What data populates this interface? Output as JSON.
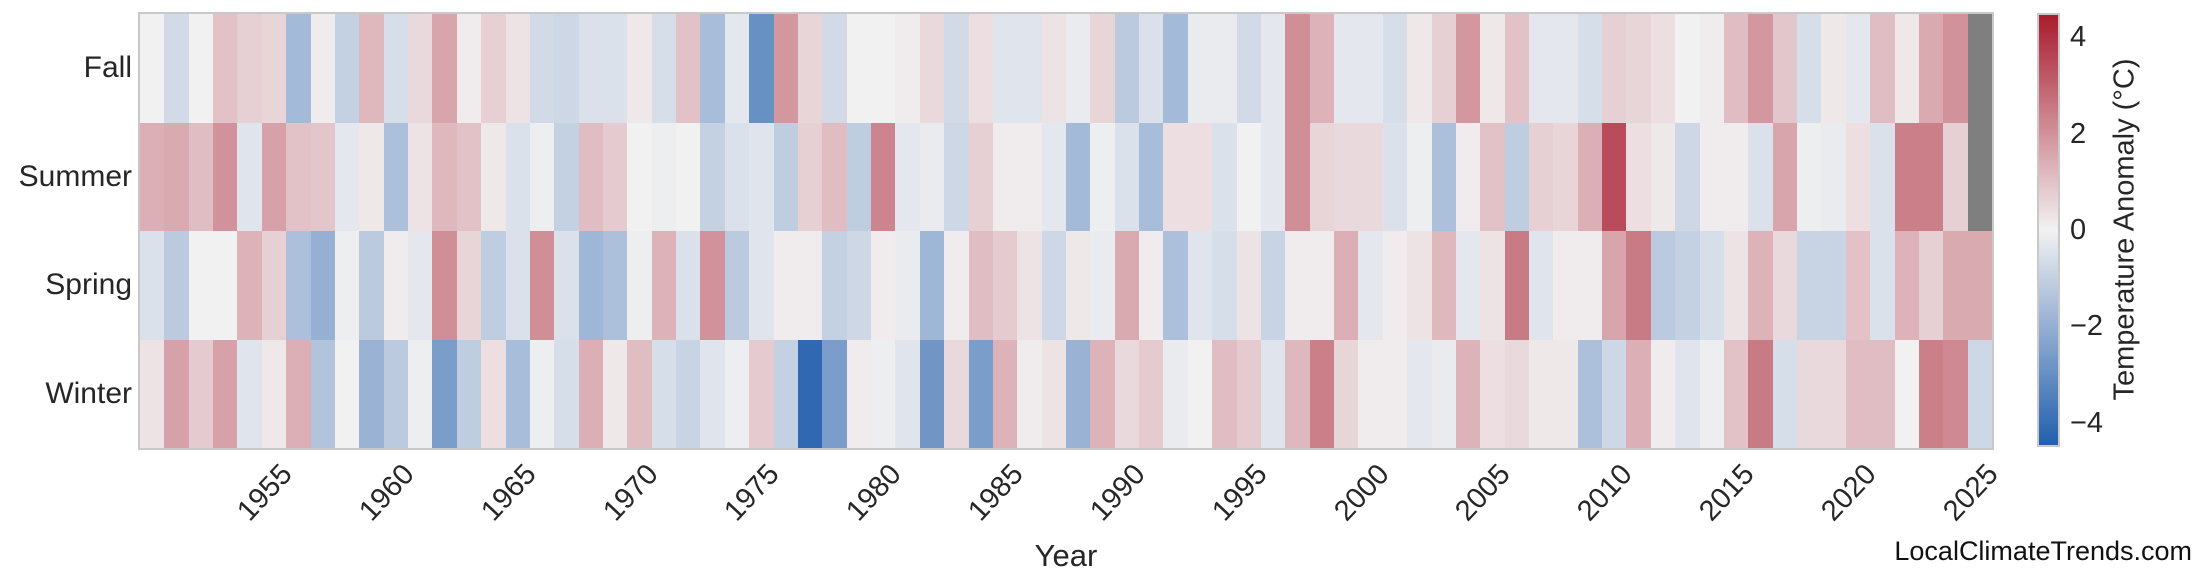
{
  "chart_data": {
    "type": "heatmap",
    "title": "",
    "xlabel": "Year",
    "watermark": "LocalClimateTrends.com",
    "year_start": 1950,
    "year_end": 2025,
    "x_tick_labels": [
      "1955",
      "1960",
      "1965",
      "1970",
      "1975",
      "1980",
      "1985",
      "1990",
      "1995",
      "2000",
      "2005",
      "2010",
      "2015",
      "2020",
      "2025"
    ],
    "colorbar": {
      "label": "Temperature Anomaly (°C)",
      "tick_values": [
        4,
        2,
        0,
        -2,
        -4
      ],
      "tick_labels": [
        "4",
        "2",
        "0",
        "−2",
        "−4"
      ],
      "vmin": -4.5,
      "vmax": 4.5
    },
    "colors": {
      "positive_max": "#a91c2e",
      "center": "#f2f1f2",
      "negative_min": "#225fac",
      "missing": "#7f7f7f",
      "frame": "#c9c9c9"
    },
    "legend_position": "right",
    "grid": false,
    "series": [
      {
        "name": "Fall",
        "values": [
          0.0,
          -0.7,
          0.0,
          1.0,
          0.7,
          0.6,
          -1.7,
          0.1,
          -1.0,
          1.2,
          -0.6,
          0.5,
          1.6,
          0.1,
          0.7,
          0.3,
          -0.7,
          -0.8,
          -0.5,
          -0.5,
          0.2,
          -0.6,
          1.0,
          -1.6,
          -0.3,
          -3.0,
          1.9,
          0.6,
          -0.7,
          0.0,
          0.0,
          0.1,
          0.5,
          -0.7,
          0.4,
          -0.4,
          -0.4,
          0.3,
          -0.2,
          0.6,
          -1.2,
          -0.5,
          -1.7,
          -0.2,
          -0.2,
          -0.7,
          -0.3,
          2.1,
          1.3,
          -0.3,
          -0.3,
          -0.6,
          0.2,
          0.7,
          1.9,
          0.2,
          1.0,
          -0.3,
          -0.3,
          -0.6,
          0.7,
          0.6,
          0.4,
          0.0,
          0.1,
          1.1,
          1.9,
          0.9,
          -0.6,
          0.2,
          -0.3,
          1.1,
          0.2,
          1.5,
          2.0,
          null
        ]
      },
      {
        "name": "Summer",
        "values": [
          1.4,
          1.5,
          1.1,
          2.0,
          -0.4,
          1.7,
          1.0,
          0.9,
          -0.3,
          0.2,
          -1.5,
          0.3,
          1.2,
          1.0,
          0.2,
          -0.5,
          -0.1,
          -1.0,
          1.1,
          0.8,
          0.0,
          -0.1,
          0.0,
          -1.0,
          -0.5,
          -0.4,
          -1.1,
          0.7,
          1.1,
          -1.1,
          2.3,
          -0.3,
          -0.2,
          -0.8,
          0.7,
          0.1,
          0.1,
          -0.3,
          -1.7,
          -0.1,
          -0.5,
          -1.6,
          0.4,
          0.4,
          -0.5,
          0.0,
          -0.3,
          2.1,
          0.6,
          0.5,
          0.5,
          -0.5,
          -0.1,
          -1.5,
          0.1,
          1.0,
          -1.1,
          0.7,
          0.6,
          1.4,
          3.5,
          0.4,
          0.2,
          -0.8,
          0.1,
          0.1,
          -0.5,
          1.6,
          -0.1,
          -0.2,
          0.4,
          -0.5,
          2.4,
          2.4,
          0.7,
          null
        ]
      },
      {
        "name": "Spring",
        "values": [
          -0.5,
          -1.2,
          0.0,
          0.0,
          1.3,
          0.7,
          -1.5,
          -2.0,
          -0.1,
          -1.2,
          0.1,
          -0.3,
          2.1,
          0.6,
          -1.1,
          -0.5,
          2.1,
          -0.5,
          -1.8,
          -1.5,
          -0.1,
          1.3,
          -0.5,
          2.0,
          -1.2,
          -0.4,
          0.1,
          0.1,
          -1.0,
          -0.8,
          0.1,
          -0.2,
          -1.8,
          0.1,
          1.1,
          0.8,
          0.3,
          -0.8,
          0.2,
          -0.2,
          1.5,
          0.1,
          -1.5,
          -0.4,
          -0.6,
          0.3,
          -0.9,
          0.1,
          0.1,
          1.4,
          -0.3,
          0.1,
          0.3,
          1.2,
          -0.3,
          0.3,
          2.5,
          -0.4,
          0.1,
          0.1,
          1.6,
          2.5,
          -1.2,
          -1.0,
          -0.6,
          0.3,
          1.3,
          0.5,
          -0.9,
          -0.9,
          1.0,
          -0.5,
          1.3,
          0.7,
          1.5,
          1.5
        ]
      },
      {
        "name": "Winter",
        "values": [
          0.3,
          1.7,
          0.8,
          1.7,
          -0.4,
          0.2,
          1.4,
          -1.4,
          0.0,
          -1.9,
          -1.2,
          -0.1,
          -2.6,
          -1.1,
          0.4,
          -1.6,
          -0.1,
          -0.6,
          1.4,
          0.2,
          1.1,
          -0.6,
          -0.9,
          -0.4,
          -0.1,
          0.8,
          -1.0,
          -4.2,
          -2.6,
          0.1,
          -0.1,
          -0.4,
          -2.8,
          0.5,
          -2.6,
          1.3,
          0.1,
          0.3,
          -1.9,
          1.3,
          0.5,
          0.8,
          -0.2,
          0.0,
          1.1,
          0.8,
          -0.4,
          1.2,
          2.4,
          0.6,
          0.1,
          0.1,
          -0.3,
          -0.2,
          1.3,
          0.4,
          0.5,
          0.2,
          0.2,
          -1.5,
          -0.8,
          1.4,
          0.1,
          -0.4,
          -0.1,
          1.0,
          2.5,
          -0.6,
          0.5,
          0.5,
          1.1,
          1.1,
          0.0,
          2.4,
          2.2,
          -0.8
        ]
      }
    ]
  }
}
